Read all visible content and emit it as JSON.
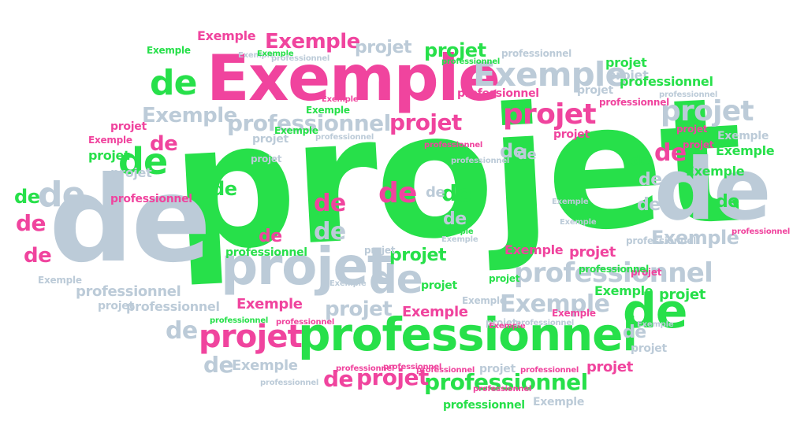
{
  "palette": {
    "green": "#27e04a",
    "pink": "#f0449e",
    "gray": "#bccbd8"
  },
  "words": [
    {
      "text": "projet",
      "color": "green"
    },
    {
      "text": "Exemple",
      "color": "pink"
    },
    {
      "text": "de",
      "color": "gray"
    },
    {
      "text": "de",
      "color": "gray"
    },
    {
      "text": "projet",
      "color": "gray"
    },
    {
      "text": "professionnel",
      "color": "green"
    },
    {
      "text": "Exemple",
      "color": "gray"
    },
    {
      "text": "de",
      "color": "green"
    },
    {
      "text": "de",
      "color": "green"
    },
    {
      "text": "de",
      "color": "green"
    },
    {
      "text": "de",
      "color": "gray"
    },
    {
      "text": "professionnel",
      "color": "gray"
    },
    {
      "text": "professionnel",
      "color": "gray"
    },
    {
      "text": "professionnel",
      "color": "green"
    },
    {
      "text": "projet",
      "color": "pink"
    },
    {
      "text": "projet",
      "color": "pink"
    },
    {
      "text": "projet",
      "color": "gray"
    },
    {
      "text": "Exemple",
      "color": "gray"
    },
    {
      "text": "projet",
      "color": "gray"
    },
    {
      "text": "Exemple",
      "color": "pink"
    },
    {
      "text": "Exemple",
      "color": "gray"
    },
    {
      "text": "Exemple",
      "color": "gray"
    },
    {
      "text": "projet",
      "color": "pink"
    },
    {
      "text": "projet",
      "color": "pink"
    },
    {
      "text": "de",
      "color": "pink"
    },
    {
      "text": "de",
      "color": "pink"
    },
    {
      "text": "de",
      "color": "green"
    },
    {
      "text": "de",
      "color": "green"
    },
    {
      "text": "de",
      "color": "gray"
    },
    {
      "text": "de",
      "color": "gray"
    },
    {
      "text": "de",
      "color": "gray"
    },
    {
      "text": "de",
      "color": "gray"
    },
    {
      "text": "de",
      "color": "gray"
    },
    {
      "text": "de",
      "color": "pink"
    },
    {
      "text": "de",
      "color": "pink"
    },
    {
      "text": "de",
      "color": "pink"
    },
    {
      "text": "de",
      "color": "green"
    },
    {
      "text": "de",
      "color": "pink"
    },
    {
      "text": "de",
      "color": "gray"
    },
    {
      "text": "de",
      "color": "gray"
    },
    {
      "text": "de",
      "color": "gray"
    },
    {
      "text": "de",
      "color": "pink"
    },
    {
      "text": "de",
      "color": "green"
    },
    {
      "text": "de",
      "color": "gray"
    },
    {
      "text": "de",
      "color": "gray"
    },
    {
      "text": "de",
      "color": "green"
    },
    {
      "text": "de",
      "color": "gray"
    },
    {
      "text": "de",
      "color": "pink"
    },
    {
      "text": "projet",
      "color": "green"
    },
    {
      "text": "projet",
      "color": "green"
    },
    {
      "text": "projet",
      "color": "green"
    },
    {
      "text": "projet",
      "color": "gray"
    },
    {
      "text": "projet",
      "color": "gray"
    },
    {
      "text": "projet",
      "color": "gray"
    },
    {
      "text": "projet",
      "color": "pink"
    },
    {
      "text": "projet",
      "color": "pink"
    },
    {
      "text": "projet",
      "color": "pink"
    },
    {
      "text": "projet",
      "color": "green"
    },
    {
      "text": "projet",
      "color": "gray"
    },
    {
      "text": "projet",
      "color": "green"
    },
    {
      "text": "projet",
      "color": "gray"
    },
    {
      "text": "projet",
      "color": "gray"
    },
    {
      "text": "projet",
      "color": "green"
    },
    {
      "text": "projet",
      "color": "gray"
    },
    {
      "text": "projet",
      "color": "gray"
    },
    {
      "text": "projet",
      "color": "pink"
    },
    {
      "text": "projet",
      "color": "gray"
    },
    {
      "text": "projet",
      "color": "pink"
    },
    {
      "text": "projet",
      "color": "gray"
    },
    {
      "text": "projet",
      "color": "pink"
    },
    {
      "text": "projet",
      "color": "green"
    },
    {
      "text": "projet",
      "color": "pink"
    },
    {
      "text": "projet",
      "color": "gray"
    },
    {
      "text": "Exemple",
      "color": "pink"
    },
    {
      "text": "Exemple",
      "color": "green"
    },
    {
      "text": "Exemple",
      "color": "green"
    },
    {
      "text": "Exemple",
      "color": "green"
    },
    {
      "text": "Exemple",
      "color": "green"
    },
    {
      "text": "Exemple",
      "color": "green"
    },
    {
      "text": "Exemple",
      "color": "gray"
    },
    {
      "text": "Exemple",
      "color": "gray"
    },
    {
      "text": "Exemple",
      "color": "gray"
    },
    {
      "text": "Exemple",
      "color": "gray"
    },
    {
      "text": "Exemple",
      "color": "pink"
    },
    {
      "text": "Exemple",
      "color": "pink"
    },
    {
      "text": "Exemple",
      "color": "pink"
    },
    {
      "text": "Exemple",
      "color": "pink"
    },
    {
      "text": "Exemple",
      "color": "gray"
    },
    {
      "text": "Exemple",
      "color": "green"
    },
    {
      "text": "Exemple",
      "color": "gray"
    },
    {
      "text": "Exemple",
      "color": "pink"
    },
    {
      "text": "Exemple",
      "color": "gray"
    },
    {
      "text": "Exemple",
      "color": "green"
    },
    {
      "text": "Exemple",
      "color": "gray"
    },
    {
      "text": "Exemple",
      "color": "pink"
    },
    {
      "text": "Exemple",
      "color": "gray"
    },
    {
      "text": "Exemple",
      "color": "gray"
    },
    {
      "text": "Exemple",
      "color": "green"
    },
    {
      "text": "Exemple",
      "color": "pink"
    },
    {
      "text": "Exemple",
      "color": "gray"
    },
    {
      "text": "professionnel",
      "color": "gray"
    },
    {
      "text": "professionnel",
      "color": "green"
    },
    {
      "text": "professionnel",
      "color": "pink"
    },
    {
      "text": "professionnel",
      "color": "green"
    },
    {
      "text": "professionnel",
      "color": "gray"
    },
    {
      "text": "professionnel",
      "color": "pink"
    },
    {
      "text": "professionnel",
      "color": "green"
    },
    {
      "text": "professionnel",
      "color": "pink"
    },
    {
      "text": "professionnel",
      "color": "gray"
    },
    {
      "text": "professionnel",
      "color": "green"
    },
    {
      "text": "professionnel",
      "color": "gray"
    },
    {
      "text": "professionnel",
      "color": "gray"
    },
    {
      "text": "professionnel",
      "color": "gray"
    },
    {
      "text": "professionnel",
      "color": "pink"
    },
    {
      "text": "professionnel",
      "color": "green"
    },
    {
      "text": "professionnel",
      "color": "gray"
    },
    {
      "text": "professionnel",
      "color": "pink"
    },
    {
      "text": "professionnel",
      "color": "pink"
    },
    {
      "text": "professionnel",
      "color": "pink"
    },
    {
      "text": "professionnel",
      "color": "pink"
    },
    {
      "text": "professionnel",
      "color": "pink"
    },
    {
      "text": "professionnel",
      "color": "gray"
    },
    {
      "text": "professionnel",
      "color": "green"
    },
    {
      "text": "professionnel",
      "color": "gray"
    },
    {
      "text": "professionnel",
      "color": "pink"
    },
    {
      "text": "professionnel",
      "color": "pink"
    },
    {
      "text": "professionnel",
      "color": "gray"
    }
  ]
}
